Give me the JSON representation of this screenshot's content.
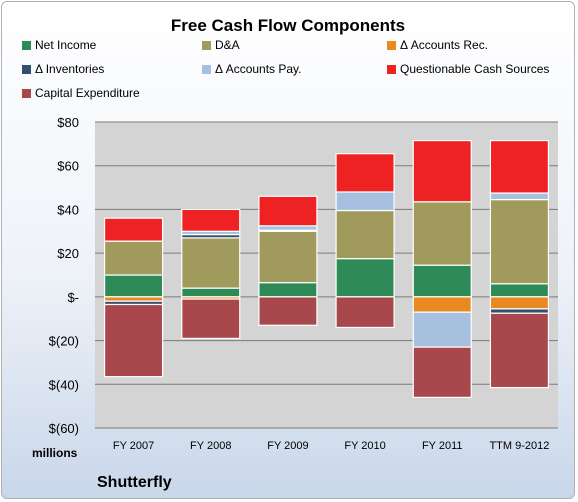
{
  "chart_data": {
    "type": "bar",
    "stacked": true,
    "title": "Free Cash Flow Components",
    "categories": [
      "FY 2007",
      "FY 2008",
      "FY 2009",
      "FY 2010",
      "FY 2011",
      "TTM 9-2012"
    ],
    "ylim": [
      -60,
      80
    ],
    "yticks": [
      {
        "value": 80,
        "label": "$80"
      },
      {
        "value": 60,
        "label": "$60"
      },
      {
        "value": 40,
        "label": "$40"
      },
      {
        "value": 20,
        "label": "$20"
      },
      {
        "value": 0,
        "label": "$-"
      },
      {
        "value": -20,
        "label": "$(20)"
      },
      {
        "value": -40,
        "label": "$(40)"
      },
      {
        "value": -60,
        "label": "$(60)"
      }
    ],
    "grid": true,
    "legend_position": "top",
    "series": [
      {
        "name": "Net Income",
        "color": "#2e8b57",
        "values": [
          10,
          4,
          6.5,
          17.5,
          14.5,
          6
        ]
      },
      {
        "name": "D&A",
        "color": "#a09a5c",
        "values": [
          15.5,
          23,
          23.5,
          22,
          29,
          38.5
        ]
      },
      {
        "name": "Δ Accounts Rec.",
        "color": "#e88a20",
        "values": [
          -2,
          -1,
          0,
          0,
          -7,
          -5.5
        ]
      },
      {
        "name": "Δ Inventories",
        "color": "#34506e",
        "values": [
          -1.5,
          1.5,
          0.5,
          0,
          0,
          -2
        ]
      },
      {
        "name": "Δ Accounts Pay.",
        "color": "#a8c0e0",
        "values": [
          0,
          1.5,
          2,
          8.5,
          0,
          3
        ]
      },
      {
        "name": "Questionable Cash Sources",
        "color": "#ee2222",
        "values": [
          10.5,
          10,
          13.5,
          17.5,
          28,
          24
        ]
      },
      {
        "name": "Capital Expenditure",
        "color": "#a8484c",
        "values": [
          -33,
          -18,
          -13,
          -14,
          -23,
          -34
        ]
      }
    ],
    "negative_offsets": [
      {
        "series": "Δ Accounts Pay.",
        "values": [
          0,
          0,
          0,
          0,
          -16,
          0
        ]
      }
    ],
    "units_label": "millions",
    "company": "Shutterfly"
  }
}
